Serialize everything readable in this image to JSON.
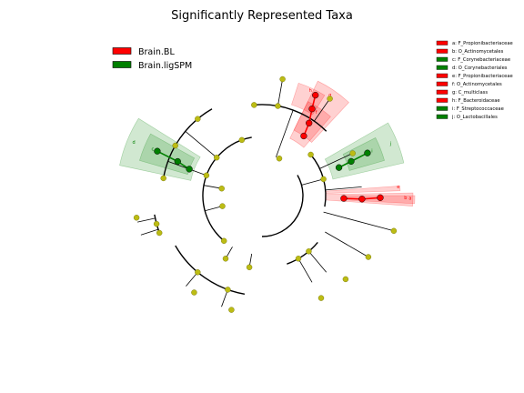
{
  "chart_data": {
    "type": "cladogram",
    "title": "Significantly Represented Taxa",
    "legend": {
      "position": "top-left",
      "entries": [
        {
          "name": "Brain.BL",
          "color": "#ff0000"
        },
        {
          "name": "Brain.ligSPM",
          "color": "#008000"
        }
      ]
    },
    "taxa_key": {
      "position": "top-right",
      "entries": [
        {
          "label": "a: F_Propionibacteriaceae",
          "group": "Brain.BL"
        },
        {
          "label": "b: O_Actinomycetales",
          "group": "Brain.BL"
        },
        {
          "label": "c: F_Corynebacteriaceae",
          "group": "Brain.ligSPM"
        },
        {
          "label": "d: O_Corynebacteriales",
          "group": "Brain.ligSPM"
        },
        {
          "label": "e: F_Propionibacteriaceae",
          "group": "Brain.BL"
        },
        {
          "label": "f: O_Actinomycetales",
          "group": "Brain.BL"
        },
        {
          "label": "g: C_multiclass",
          "group": "Brain.BL"
        },
        {
          "label": "h: F_Bacteroidaceae",
          "group": "Brain.BL"
        },
        {
          "label": "i: F_Streptococcaceae",
          "group": "Brain.ligSPM"
        },
        {
          "label": "j: O_Lactobacillales",
          "group": "Brain.ligSPM"
        }
      ]
    },
    "highlighted_clades": [
      {
        "letter": "a",
        "group": "Brain.BL"
      },
      {
        "letter": "b",
        "group": "Brain.BL"
      },
      {
        "letter": "c",
        "group": "Brain.ligSPM"
      },
      {
        "letter": "d",
        "group": "Brain.ligSPM"
      },
      {
        "letter": "e",
        "group": "Brain.BL"
      },
      {
        "letter": "f",
        "group": "Brain.BL"
      },
      {
        "letter": "g",
        "group": "Brain.BL"
      },
      {
        "letter": "h",
        "group": "Brain.BL"
      },
      {
        "letter": "i",
        "group": "Brain.ligSPM"
      },
      {
        "letter": "j",
        "group": "Brain.ligSPM"
      }
    ],
    "colors": {
      "Brain.BL": "#ff0000",
      "Brain.ligSPM": "#008000",
      "non_significant_node": "#bcbc14",
      "branch": "#000000"
    }
  }
}
